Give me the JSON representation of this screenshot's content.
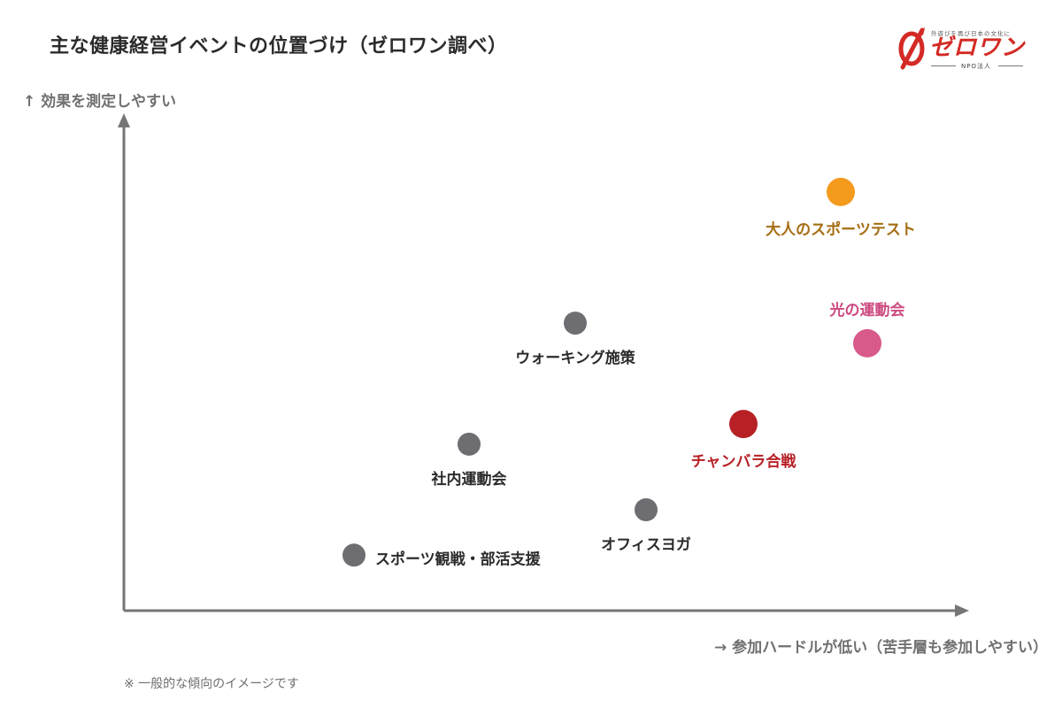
{
  "title": "主な健康経営イベントの位置づけ（ゼロワン調べ）",
  "logo": {
    "tagline": "外遊びを再び日本の文化に",
    "wordmark": "ゼロワン",
    "org": "NPO法人"
  },
  "footnote": "※ 一般的な傾向のイメージです",
  "colors": {
    "gray": "#6d6d72",
    "orange": "#f49a1d",
    "pink": "#d85a8a",
    "red": "#b72025",
    "axis": "#767676"
  },
  "chart_data": {
    "type": "scatter",
    "xlabel": "→ 参加ハードルが低い（苦手層も参加しやすい）",
    "ylabel": "↑ 効果を測定しやすい",
    "xlim": [
      0,
      100
    ],
    "ylim": [
      0,
      100
    ],
    "grid": false,
    "points": [
      {
        "label": "大人のスポーツテスト",
        "x": 81,
        "y": 83,
        "color": "#f49a1d",
        "text_color": "#a56d12",
        "label_pos": "below"
      },
      {
        "label": "光の運動会",
        "x": 84,
        "y": 53,
        "color": "#d85a8a",
        "text_color": "#cc4a80",
        "label_pos": "above"
      },
      {
        "label": "ウォーキング施策",
        "x": 51,
        "y": 57,
        "color": "#6d6d72",
        "text_color": "#2b2b2b",
        "label_pos": "below"
      },
      {
        "label": "チャンバラ合戦",
        "x": 70,
        "y": 37,
        "color": "#b72025",
        "text_color": "#b72025",
        "label_pos": "below"
      },
      {
        "label": "社内運動会",
        "x": 39,
        "y": 33,
        "color": "#6d6d72",
        "text_color": "#2b2b2b",
        "label_pos": "below"
      },
      {
        "label": "オフィスヨガ",
        "x": 59,
        "y": 20,
        "color": "#6d6d72",
        "text_color": "#2b2b2b",
        "label_pos": "below"
      },
      {
        "label": "スポーツ観戦・部活支援",
        "x": 26,
        "y": 11,
        "color": "#6d6d72",
        "text_color": "#2b2b2b",
        "label_pos": "right"
      }
    ]
  }
}
